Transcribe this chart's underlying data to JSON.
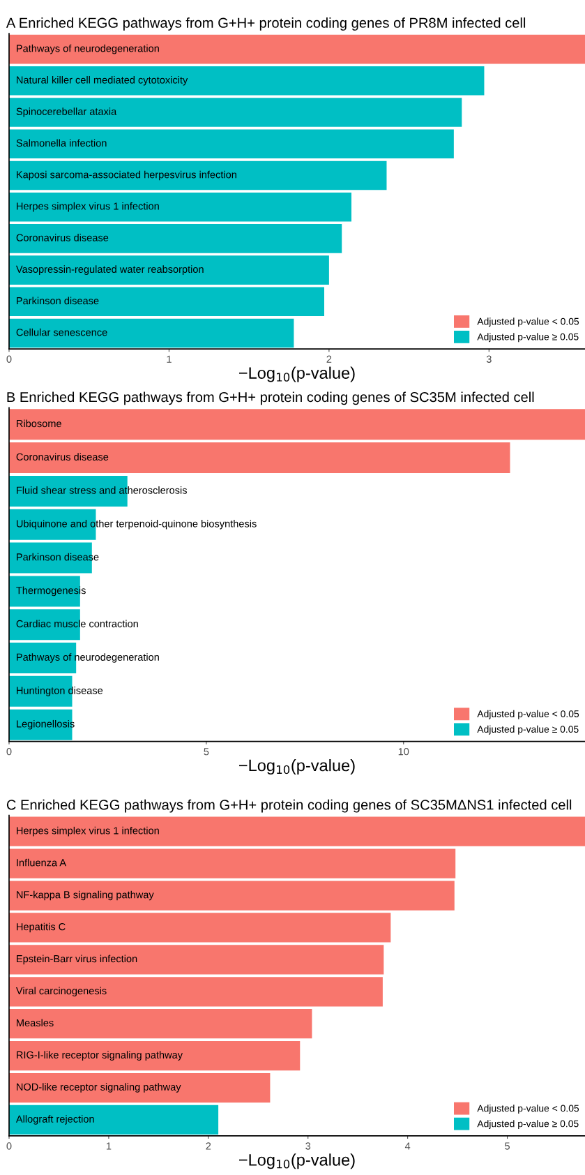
{
  "chart_data": [
    {
      "type": "bar",
      "orientation": "horizontal",
      "title": "A Enriched KEGG pathways from G+H+ protein coding genes of PR8M infected cell",
      "xlabel": "−Log$_{10}$(p-value)",
      "categories": [
        "Pathways of neurodegeneration",
        "Natural killer cell mediated cytotoxicity",
        "Spinocerebellar ataxia",
        "Salmonella infection",
        "Kaposi sarcoma-associated herpesvirus infection",
        "Herpes simplex virus 1 infection",
        "Coronavirus disease",
        "Vasopressin-regulated water reabsorption",
        "Parkinson disease",
        "Cellular senescence"
      ],
      "series": [
        {
          "name": "Adjusted p-value < 0.05",
          "color": "#f8766d",
          "values": [
            3.6,
            null,
            null,
            null,
            null,
            null,
            null,
            null,
            null,
            null
          ]
        },
        {
          "name": "Adjusted p-value ≥ 0.05",
          "color": "#00bfc4",
          "values": [
            null,
            2.97,
            2.83,
            2.78,
            2.36,
            2.14,
            2.08,
            2.0,
            1.97,
            1.78
          ]
        }
      ],
      "xlim": [
        0,
        3.6
      ],
      "xticks": [
        0,
        1,
        2,
        3
      ],
      "legend": "bottom right",
      "grid": false
    },
    {
      "type": "bar",
      "orientation": "horizontal",
      "title": "B Enriched KEGG pathways from G+H+ protein coding genes of SC35M infected cell",
      "xlabel": "−Log$_{10}$(p-value)",
      "categories": [
        "Ribosome",
        "Coronavirus disease",
        "Fluid shear stress and atherosclerosis",
        "Ubiquinone and other terpenoid-quinone biosynthesis",
        "Parkinson disease",
        "Thermogenesis",
        "Cardiac muscle contraction",
        "Pathways of neurodegeneration",
        "Huntington disease",
        "Legionellosis"
      ],
      "series": [
        {
          "name": "Adjusted p-value < 0.05",
          "color": "#f8766d",
          "values": [
            14.6,
            12.7,
            null,
            null,
            null,
            null,
            null,
            null,
            null,
            null
          ]
        },
        {
          "name": "Adjusted p-value ≥ 0.05",
          "color": "#00bfc4",
          "values": [
            null,
            null,
            3.0,
            2.2,
            2.1,
            1.8,
            1.8,
            1.7,
            1.6,
            1.6
          ]
        }
      ],
      "xlim": [
        0,
        14.6
      ],
      "xticks": [
        0,
        5,
        10
      ],
      "legend": "bottom right",
      "grid": false
    },
    {
      "type": "bar",
      "orientation": "horizontal",
      "title": "C Enriched KEGG pathways from G+H+ protein coding genes of SC35MΔNS1 infected cell",
      "xlabel": "−Log$_{10}$(p-value)",
      "categories": [
        "Herpes simplex virus 1 infection",
        "Influenza A",
        "NF-kappa B signaling pathway",
        "Hepatitis C",
        "Epstein-Barr virus infection",
        "Viral carcinogenesis",
        "Measles",
        "RIG-I-like receptor signaling pathway",
        "NOD-like receptor signaling pathway",
        "Allograft rejection"
      ],
      "series": [
        {
          "name": "Adjusted p-value < 0.05",
          "color": "#f8766d",
          "values": [
            5.78,
            4.48,
            4.47,
            3.83,
            3.76,
            3.75,
            3.04,
            2.92,
            2.62,
            null
          ]
        },
        {
          "name": "Adjusted p-value ≥ 0.05",
          "color": "#00bfc4",
          "values": [
            null,
            null,
            null,
            null,
            null,
            null,
            null,
            null,
            null,
            2.1
          ]
        }
      ],
      "xlim": [
        0,
        5.78
      ],
      "xticks": [
        0,
        1,
        2,
        3,
        4,
        5
      ],
      "legend": "bottom right",
      "grid": false
    }
  ]
}
